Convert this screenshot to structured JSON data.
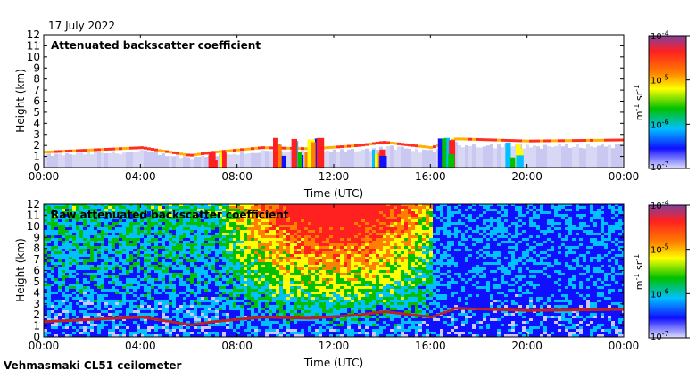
{
  "date": "17 July 2022",
  "footer": "Vehmasmaki CL51 ceilometer",
  "chart_data": [
    {
      "type": "heatmap",
      "title": "Attenuated backscatter coefficient",
      "xlabel": "Time (UTC)",
      "ylabel": "Height (km)",
      "x_ticks": [
        "00:00",
        "04:00",
        "08:00",
        "12:00",
        "16:00",
        "20:00",
        "00:00"
      ],
      "xlim_hours": [
        0,
        24
      ],
      "ylim": [
        0,
        12
      ],
      "y_ticks": [
        0,
        1,
        2,
        3,
        4,
        5,
        6,
        7,
        8,
        9,
        10,
        11,
        12
      ],
      "colorbar": {
        "label_prefix": "m",
        "label_sup1": "-1",
        "label_mid": " sr",
        "label_sup2": "-1",
        "scale": "log",
        "ticks": [
          {
            "base": "10",
            "exp": "-4"
          },
          {
            "base": "10",
            "exp": "-5"
          },
          {
            "base": "10",
            "exp": "-6"
          },
          {
            "base": "10",
            "exp": "-7"
          }
        ],
        "colors": [
          "#8040a0",
          "#ff2020",
          "#ff8000",
          "#ffff00",
          "#00c000",
          "#00c0ff",
          "#1010ff",
          "#c8c8ff"
        ]
      },
      "cloud_base_km": [
        {
          "t": 0,
          "h": 1.4
        },
        {
          "t": 2,
          "h": 1.6
        },
        {
          "t": 4,
          "h": 1.8
        },
        {
          "t": 6,
          "h": 1.1
        },
        {
          "t": 7,
          "h": 1.4
        },
        {
          "t": 9,
          "h": 1.8
        },
        {
          "t": 11,
          "h": 1.7
        },
        {
          "t": 13,
          "h": 2.0
        },
        {
          "t": 14,
          "h": 2.3
        },
        {
          "t": 16,
          "h": 1.8
        },
        {
          "t": 17,
          "h": 2.6
        },
        {
          "t": 20,
          "h": 2.4
        },
        {
          "t": 24,
          "h": 2.5
        }
      ]
    },
    {
      "type": "heatmap",
      "title": "Raw attenuated backscatter coefficient",
      "xlabel": "Time (UTC)",
      "ylabel": "Height (km)",
      "x_ticks": [
        "00:00",
        "04:00",
        "08:00",
        "12:00",
        "16:00",
        "20:00",
        "00:00"
      ],
      "xlim_hours": [
        0,
        24
      ],
      "ylim": [
        0,
        12
      ],
      "y_ticks": [
        0,
        1,
        2,
        3,
        4,
        5,
        6,
        7,
        8,
        9,
        10,
        11,
        12
      ],
      "colorbar": {
        "label_prefix": "m",
        "label_sup1": "-1",
        "label_mid": " sr",
        "label_sup2": "-1",
        "scale": "log",
        "ticks": [
          {
            "base": "10",
            "exp": "-4"
          },
          {
            "base": "10",
            "exp": "-5"
          },
          {
            "base": "10",
            "exp": "-6"
          },
          {
            "base": "10",
            "exp": "-7"
          }
        ],
        "colors": [
          "#8040a0",
          "#ff2020",
          "#ff8000",
          "#ffff00",
          "#00c000",
          "#00c0ff",
          "#1010ff",
          "#c8c8ff"
        ]
      }
    }
  ]
}
